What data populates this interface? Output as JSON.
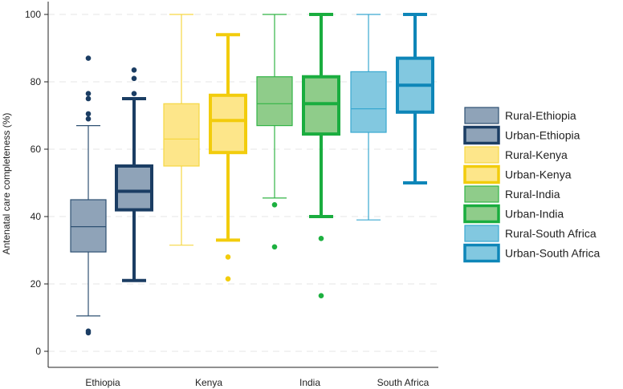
{
  "chart_data": {
    "type": "boxplot",
    "ylabel": "Antenatal care completeness (%)",
    "xlabel": "",
    "ylim": [
      0,
      100
    ],
    "yticks": [
      0,
      20,
      40,
      60,
      80,
      100
    ],
    "grid": true,
    "legend_position": "right",
    "categories": [
      "Ethiopia",
      "Kenya",
      "India",
      "South Africa"
    ],
    "series": [
      {
        "name": "Rural-Ethiopia",
        "category": "Ethiopia",
        "setting": "Rural",
        "color": "#8fa3b8",
        "edge": "#2e5072",
        "min": 10.5,
        "q1": 29.5,
        "median": 37,
        "q3": 45,
        "max": 67,
        "outliers": [
          87,
          76.5,
          75,
          70.5,
          69,
          6,
          5.5
        ],
        "outlier_color": "#1b3d63"
      },
      {
        "name": "Urban-Ethiopia",
        "category": "Ethiopia",
        "setting": "Urban",
        "color": "#8fa3b8",
        "edge": "#1b3d63",
        "min": 21,
        "q1": 42,
        "median": 47.5,
        "q3": 55,
        "max": 75,
        "outliers": [
          83.5,
          81,
          76.5
        ],
        "outlier_color": "#1b3d63"
      },
      {
        "name": "Rural-Kenya",
        "category": "Kenya",
        "setting": "Rural",
        "color": "#fde68a",
        "edge": "#f6d743",
        "min": 31.5,
        "q1": 55,
        "median": 63,
        "q3": 73.5,
        "max": 100,
        "outliers": [],
        "outlier_color": "#f2cc0c"
      },
      {
        "name": "Urban-Kenya",
        "category": "Kenya",
        "setting": "Urban",
        "color": "#fde68a",
        "edge": "#f2cc0c",
        "min": 33,
        "q1": 59,
        "median": 68.5,
        "q3": 76,
        "max": 94,
        "outliers": [
          28,
          21.5
        ],
        "outlier_color": "#f2cc0c"
      },
      {
        "name": "Rural-India",
        "category": "India",
        "setting": "Rural",
        "color": "#8fcc8a",
        "edge": "#32b446",
        "min": 45.5,
        "q1": 67,
        "median": 73.5,
        "q3": 81.5,
        "max": 100,
        "outliers": [
          43.5,
          31
        ],
        "outlier_color": "#1db040"
      },
      {
        "name": "Urban-India",
        "category": "India",
        "setting": "Urban",
        "color": "#8fcc8a",
        "edge": "#1aad3f",
        "min": 40,
        "q1": 64.5,
        "median": 73.5,
        "q3": 81.5,
        "max": 100,
        "outliers": [
          33.5,
          16.5
        ],
        "outlier_color": "#1db040"
      },
      {
        "name": "Rural-South Africa",
        "category": "South Africa",
        "setting": "Rural",
        "color": "#82c8e0",
        "edge": "#3aa8d0",
        "min": 39,
        "q1": 65,
        "median": 72,
        "q3": 83,
        "max": 100,
        "outliers": [],
        "outlier_color": "#0e86b8"
      },
      {
        "name": "Urban-South Africa",
        "category": "South Africa",
        "setting": "Urban",
        "color": "#82c8e0",
        "edge": "#0e86b8",
        "min": 50,
        "q1": 71,
        "median": 79,
        "q3": 87,
        "max": 100,
        "outliers": [],
        "outlier_color": "#0e86b8"
      }
    ]
  }
}
